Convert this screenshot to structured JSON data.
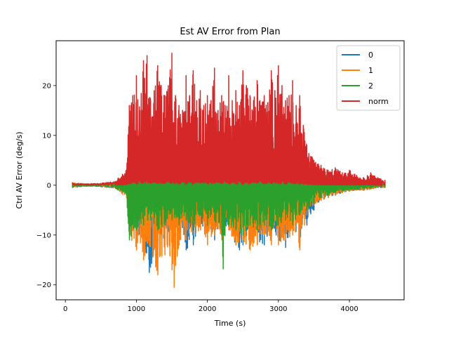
{
  "chart_data": {
    "type": "line",
    "title": "Est AV Error from Plan",
    "xlabel": "Time (s)",
    "ylabel": "Ctrl AV Error (deg/s)",
    "xlim": [
      -130,
      4770
    ],
    "ylim": [
      -23,
      29
    ],
    "xticks": [
      0,
      1000,
      2000,
      3000,
      4000
    ],
    "xtick_labels": [
      "0",
      "1000",
      "2000",
      "3000",
      "4000"
    ],
    "yticks": [
      -20,
      -10,
      0,
      10,
      20
    ],
    "ytick_labels": [
      "−20",
      "−10",
      "0",
      "10",
      "20"
    ],
    "grid": false,
    "legend_position": "top-right",
    "series": [
      {
        "name": "0",
        "color": "#1f77b4",
        "x": [
          100,
          300,
          500,
          700,
          860,
          900,
          1000,
          1100,
          1180,
          1300,
          1400,
          1500,
          1600,
          1700,
          1800,
          1900,
          2000,
          2100,
          2200,
          2300,
          2400,
          2450,
          2500,
          2600,
          2700,
          2800,
          2900,
          3000,
          3100,
          3200,
          3300,
          3400,
          3500,
          3600,
          3700,
          3800,
          3900,
          4000,
          4100,
          4200,
          4300,
          4400,
          4500
        ],
        "min": [
          -0.5,
          -0.2,
          -0.3,
          -0.6,
          -2.0,
          -6.0,
          -9.0,
          -12.0,
          -17.5,
          -12.0,
          -11.0,
          -10.0,
          -9.0,
          -13.0,
          -12.0,
          -8.0,
          -9.0,
          -11.0,
          -10.0,
          -9.0,
          -12.0,
          -13.0,
          -12.0,
          -10.0,
          -11.0,
          -12.0,
          -10.0,
          -11.0,
          -12.5,
          -8.0,
          -11.0,
          -8.0,
          -5.0,
          -3.0,
          -2.5,
          -2.0,
          -1.5,
          -1.2,
          -1.0,
          -1.0,
          -0.8,
          -0.5,
          -0.5
        ],
        "max": [
          0.5,
          0.2,
          0.3,
          0.6,
          2.0,
          8.0,
          10.0,
          9.0,
          10.0,
          8.0,
          7.0,
          8.0,
          9.0,
          7.0,
          8.0,
          6.0,
          9.0,
          8.0,
          7.0,
          8.0,
          9.0,
          10.0,
          9.0,
          8.0,
          9.0,
          9.0,
          10.0,
          9.0,
          8.0,
          7.0,
          8.0,
          6.0,
          4.0,
          3.0,
          2.5,
          2.0,
          1.5,
          1.2,
          1.0,
          1.0,
          0.8,
          0.5,
          0.5
        ]
      },
      {
        "name": "1",
        "color": "#ff7f0e",
        "x": [
          100,
          300,
          500,
          700,
          860,
          900,
          1000,
          1100,
          1180,
          1300,
          1400,
          1500,
          1530,
          1600,
          1700,
          1800,
          1900,
          2000,
          2100,
          2200,
          2300,
          2400,
          2500,
          2600,
          2700,
          2800,
          2900,
          3000,
          3100,
          3200,
          3300,
          3400,
          3500,
          3600,
          3700,
          3800,
          3900,
          4000,
          4100,
          4200,
          4300,
          4400,
          4500
        ],
        "min": [
          -0.5,
          -0.2,
          -0.3,
          -0.6,
          -2.5,
          -10.0,
          -13.0,
          -15.0,
          -12.0,
          -18.0,
          -14.0,
          -17.0,
          -20.5,
          -12.0,
          -11.0,
          -10.0,
          -9.0,
          -12.0,
          -10.0,
          -11.0,
          -9.0,
          -12.0,
          -11.0,
          -13.0,
          -12.0,
          -10.0,
          -12.0,
          -12.0,
          -11.0,
          -10.0,
          -13.0,
          -6.0,
          -4.0,
          -3.0,
          -2.5,
          -2.0,
          -1.5,
          -1.2,
          -1.0,
          -1.0,
          -0.8,
          -0.5,
          -0.5
        ],
        "max": [
          0.5,
          0.2,
          0.3,
          0.6,
          2.5,
          9.0,
          11.0,
          12.0,
          13.0,
          10.0,
          9.0,
          8.0,
          9.0,
          10.0,
          8.0,
          9.0,
          7.0,
          10.0,
          8.0,
          9.0,
          8.0,
          10.0,
          9.0,
          8.0,
          10.0,
          9.0,
          11.0,
          10.0,
          9.0,
          8.0,
          7.0,
          5.0,
          4.0,
          3.0,
          2.5,
          2.0,
          1.5,
          1.2,
          1.0,
          1.0,
          0.8,
          0.5,
          0.5
        ]
      },
      {
        "name": "2",
        "color": "#2ca02c",
        "x": [
          100,
          300,
          500,
          700,
          860,
          900,
          1000,
          1100,
          1200,
          1300,
          1400,
          1500,
          1600,
          1700,
          1800,
          1900,
          2000,
          2100,
          2200,
          2220,
          2300,
          2400,
          2500,
          2600,
          2700,
          2800,
          2900,
          3000,
          3100,
          3200,
          3300,
          3400,
          3500,
          3600,
          3700,
          3800,
          3900,
          4000,
          4100,
          4200,
          4300,
          4400,
          4500
        ],
        "min": [
          -0.4,
          -0.2,
          -0.3,
          -0.5,
          -2.0,
          -11.0,
          -9.0,
          -8.0,
          -7.0,
          -9.0,
          -8.0,
          -7.0,
          -8.0,
          -7.0,
          -9.0,
          -6.0,
          -8.0,
          -7.0,
          -10.0,
          -16.8,
          -8.0,
          -9.0,
          -10.0,
          -8.0,
          -9.0,
          -8.0,
          -9.0,
          -8.0,
          -7.0,
          -8.0,
          -6.0,
          -5.0,
          -3.5,
          -2.5,
          -2.0,
          -1.5,
          -1.2,
          -1.0,
          -0.8,
          -0.8,
          -0.6,
          -0.4,
          -0.4
        ],
        "max": [
          0.4,
          0.2,
          0.3,
          0.5,
          2.0,
          10.0,
          9.0,
          10.0,
          9.0,
          8.0,
          9.0,
          8.0,
          9.0,
          7.0,
          8.0,
          7.0,
          9.0,
          8.0,
          7.0,
          6.0,
          8.0,
          9.0,
          9.0,
          8.0,
          9.0,
          10.0,
          10.0,
          9.0,
          8.0,
          7.0,
          7.0,
          5.0,
          3.5,
          2.5,
          2.0,
          1.5,
          1.2,
          1.0,
          0.8,
          0.8,
          0.6,
          0.4,
          0.4
        ]
      },
      {
        "name": "norm",
        "color": "#d62728",
        "x": [
          100,
          300,
          500,
          700,
          860,
          900,
          950,
          1000,
          1050,
          1100,
          1150,
          1200,
          1250,
          1300,
          1350,
          1400,
          1450,
          1500,
          1550,
          1600,
          1650,
          1700,
          1750,
          1800,
          1850,
          1900,
          1950,
          2000,
          2050,
          2100,
          2150,
          2200,
          2250,
          2300,
          2350,
          2400,
          2450,
          2500,
          2550,
          2600,
          2650,
          2700,
          2750,
          2800,
          2850,
          2900,
          2950,
          3000,
          3050,
          3100,
          3150,
          3200,
          3250,
          3300,
          3350,
          3400,
          3500,
          3600,
          3700,
          3800,
          3900,
          4000,
          4100,
          4200,
          4300,
          4400,
          4500
        ],
        "min": [
          0.0,
          0.0,
          0.0,
          0.0,
          0.2,
          0.5,
          1.0,
          0.5,
          1.0,
          0.8,
          1.0,
          0.5,
          1.0,
          0.5,
          1.0,
          0.5,
          1.0,
          0.5,
          1.0,
          0.5,
          1.0,
          0.5,
          1.0,
          0.5,
          1.0,
          0.5,
          1.0,
          0.5,
          1.0,
          0.5,
          1.0,
          0.5,
          1.0,
          0.5,
          1.0,
          0.5,
          1.0,
          0.5,
          1.0,
          0.5,
          1.0,
          0.5,
          1.0,
          0.5,
          1.0,
          0.5,
          1.0,
          0.5,
          1.0,
          0.5,
          1.0,
          0.5,
          1.0,
          0.5,
          0.5,
          0.3,
          0.2,
          0.1,
          0.1,
          0.1,
          0.1,
          0.1,
          0.1,
          0.1,
          0.1,
          0.0,
          0.0
        ],
        "max": [
          0.5,
          0.3,
          0.4,
          0.8,
          3.0,
          16.0,
          18.0,
          22.0,
          15.0,
          25.0,
          26.0,
          17.0,
          19.0,
          24.0,
          20.0,
          18.0,
          20.0,
          26.5,
          18.0,
          16.0,
          15.0,
          22.0,
          18.0,
          23.0,
          17.0,
          19.0,
          16.0,
          18.0,
          17.0,
          23.5,
          15.0,
          18.0,
          16.0,
          22.0,
          17.0,
          19.0,
          16.0,
          23.0,
          20.0,
          18.0,
          17.0,
          21.0,
          16.0,
          18.0,
          16.5,
          23.0,
          19.0,
          24.0,
          20.0,
          17.0,
          18.0,
          21.0,
          16.0,
          18.0,
          12.0,
          8.0,
          5.0,
          4.0,
          3.0,
          3.5,
          2.5,
          3.0,
          2.0,
          1.5,
          2.5,
          1.5,
          1.0
        ]
      }
    ]
  }
}
